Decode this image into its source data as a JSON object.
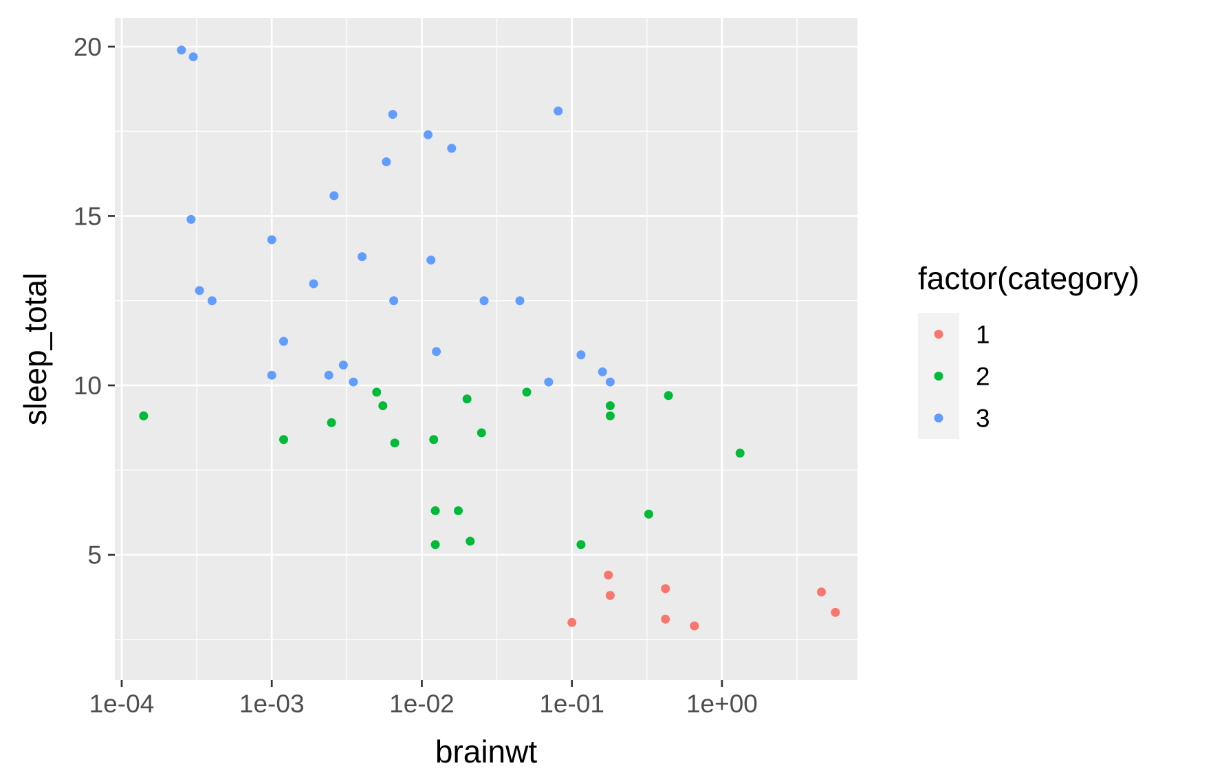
{
  "chart_data": {
    "type": "scatter",
    "xlabel": "brainwt",
    "ylabel": "sleep_total",
    "x_scale": "log10",
    "xlim": [
      9e-05,
      8
    ],
    "ylim": [
      1.3,
      20.85
    ],
    "x_ticks": [
      0.0001,
      0.001,
      0.01,
      0.1,
      1
    ],
    "x_tick_labels": [
      "1e-04",
      "1e-03",
      "1e-02",
      "1e-01",
      "1e+00"
    ],
    "y_ticks": [
      5,
      10,
      15,
      20
    ],
    "y_tick_labels": [
      "5",
      "10",
      "15",
      "20"
    ],
    "grid": true,
    "legend": {
      "title": "factor(category)",
      "position": "right",
      "entries": [
        {
          "label": "1",
          "color": "#F8766D"
        },
        {
          "label": "2",
          "color": "#00BA38"
        },
        {
          "label": "3",
          "color": "#619CFF"
        }
      ]
    },
    "series": [
      {
        "name": "1",
        "color": "#F8766D",
        "points": [
          {
            "x": 0.1,
            "y": 3.0
          },
          {
            "x": 0.175,
            "y": 4.4
          },
          {
            "x": 0.18,
            "y": 3.8
          },
          {
            "x": 0.42,
            "y": 4.0
          },
          {
            "x": 0.42,
            "y": 3.1
          },
          {
            "x": 0.655,
            "y": 2.9
          },
          {
            "x": 4.6,
            "y": 3.9
          },
          {
            "x": 5.7,
            "y": 3.3
          }
        ]
      },
      {
        "name": "2",
        "color": "#00BA38",
        "points": [
          {
            "x": 0.00014,
            "y": 9.1
          },
          {
            "x": 0.0012,
            "y": 8.4
          },
          {
            "x": 0.0025,
            "y": 8.9
          },
          {
            "x": 0.005,
            "y": 9.8
          },
          {
            "x": 0.0055,
            "y": 9.4
          },
          {
            "x": 0.0066,
            "y": 8.3
          },
          {
            "x": 0.012,
            "y": 8.4
          },
          {
            "x": 0.0123,
            "y": 6.3
          },
          {
            "x": 0.0123,
            "y": 5.3
          },
          {
            "x": 0.0175,
            "y": 6.3
          },
          {
            "x": 0.02,
            "y": 9.6
          },
          {
            "x": 0.021,
            "y": 5.4
          },
          {
            "x": 0.025,
            "y": 8.6
          },
          {
            "x": 0.05,
            "y": 9.8
          },
          {
            "x": 0.115,
            "y": 5.3
          },
          {
            "x": 0.18,
            "y": 9.4
          },
          {
            "x": 0.18,
            "y": 9.1
          },
          {
            "x": 0.325,
            "y": 6.2
          },
          {
            "x": 0.44,
            "y": 9.7
          },
          {
            "x": 1.32,
            "y": 8.0
          }
        ]
      },
      {
        "name": "3",
        "color": "#619CFF",
        "points": [
          {
            "x": 0.00025,
            "y": 19.9
          },
          {
            "x": 0.0003,
            "y": 19.7
          },
          {
            "x": 0.00029,
            "y": 14.9
          },
          {
            "x": 0.00033,
            "y": 12.8
          },
          {
            "x": 0.0004,
            "y": 12.5
          },
          {
            "x": 0.001,
            "y": 14.3
          },
          {
            "x": 0.001,
            "y": 10.3
          },
          {
            "x": 0.0012,
            "y": 11.3
          },
          {
            "x": 0.0019,
            "y": 13.0
          },
          {
            "x": 0.0024,
            "y": 10.3
          },
          {
            "x": 0.0026,
            "y": 15.6
          },
          {
            "x": 0.003,
            "y": 10.6
          },
          {
            "x": 0.0035,
            "y": 10.1
          },
          {
            "x": 0.004,
            "y": 13.8
          },
          {
            "x": 0.0058,
            "y": 16.6
          },
          {
            "x": 0.0064,
            "y": 18.0
          },
          {
            "x": 0.0065,
            "y": 12.5
          },
          {
            "x": 0.011,
            "y": 17.4
          },
          {
            "x": 0.0115,
            "y": 13.7
          },
          {
            "x": 0.0125,
            "y": 11.0
          },
          {
            "x": 0.0158,
            "y": 17.0
          },
          {
            "x": 0.026,
            "y": 12.5
          },
          {
            "x": 0.045,
            "y": 12.5
          },
          {
            "x": 0.07,
            "y": 10.1
          },
          {
            "x": 0.081,
            "y": 18.1
          },
          {
            "x": 0.115,
            "y": 10.9
          },
          {
            "x": 0.16,
            "y": 10.4
          },
          {
            "x": 0.18,
            "y": 10.1
          }
        ]
      }
    ]
  }
}
